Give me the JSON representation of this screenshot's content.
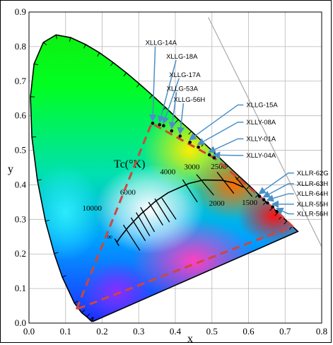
{
  "chart_data": {
    "type": "scatter",
    "title": "",
    "xlabel": "x",
    "ylabel": "y",
    "xlim": [
      0.0,
      0.8
    ],
    "ylim": [
      0.0,
      0.9
    ],
    "x_ticks": [
      "0.0",
      "0.1",
      "0.2",
      "0.3",
      "0.4",
      "0.5",
      "0.6",
      "0.7",
      "0.8"
    ],
    "y_ticks": [
      "0.0",
      "0.1",
      "0.2",
      "0.3",
      "0.4",
      "0.5",
      "0.6",
      "0.7",
      "0.8",
      "0.9"
    ],
    "grid": true,
    "spectral_locus": [
      [
        0.175,
        0.005
      ],
      [
        0.174,
        0.005
      ],
      [
        0.171,
        0.005
      ],
      [
        0.167,
        0.009
      ],
      [
        0.158,
        0.018
      ],
      [
        0.144,
        0.03
      ],
      [
        0.124,
        0.058
      ],
      [
        0.091,
        0.133
      ],
      [
        0.069,
        0.201
      ],
      [
        0.045,
        0.295
      ],
      [
        0.023,
        0.413
      ],
      [
        0.008,
        0.538
      ],
      [
        0.004,
        0.655
      ],
      [
        0.014,
        0.75
      ],
      [
        0.039,
        0.812
      ],
      [
        0.074,
        0.834
      ],
      [
        0.114,
        0.826
      ],
      [
        0.155,
        0.806
      ],
      [
        0.193,
        0.782
      ],
      [
        0.23,
        0.754
      ],
      [
        0.266,
        0.724
      ],
      [
        0.302,
        0.692
      ],
      [
        0.337,
        0.659
      ],
      [
        0.373,
        0.624
      ],
      [
        0.408,
        0.589
      ],
      [
        0.444,
        0.555
      ],
      [
        0.479,
        0.52
      ],
      [
        0.512,
        0.487
      ],
      [
        0.544,
        0.455
      ],
      [
        0.575,
        0.424
      ],
      [
        0.603,
        0.397
      ],
      [
        0.627,
        0.372
      ],
      [
        0.648,
        0.351
      ],
      [
        0.666,
        0.334
      ],
      [
        0.68,
        0.32
      ],
      [
        0.691,
        0.309
      ],
      [
        0.705,
        0.295
      ],
      [
        0.72,
        0.28
      ],
      [
        0.735,
        0.265
      ]
    ],
    "planckian_locus": [
      [
        0.24,
        0.234
      ],
      [
        0.252,
        0.252
      ],
      [
        0.27,
        0.276
      ],
      [
        0.285,
        0.293
      ],
      [
        0.306,
        0.316
      ],
      [
        0.323,
        0.331
      ],
      [
        0.345,
        0.352
      ],
      [
        0.38,
        0.377
      ],
      [
        0.437,
        0.404
      ],
      [
        0.476,
        0.414
      ],
      [
        0.527,
        0.413
      ],
      [
        0.559,
        0.406
      ],
      [
        0.586,
        0.393
      ]
    ],
    "planckian_end_label": "∞",
    "isotherms": [
      {
        "label": "10000",
        "x": [
          0.258,
          0.303
        ],
        "y": [
          0.284,
          0.21
        ]
      },
      {
        "label": "6000",
        "x": [
          0.305,
          0.343
        ],
        "y": [
          0.335,
          0.264
        ]
      },
      {
        "label": "4000",
        "x": [
          0.363,
          0.402
        ],
        "y": [
          0.362,
          0.3
        ]
      },
      {
        "label": "3000",
        "x": [
          0.42,
          0.46
        ],
        "y": [
          0.415,
          0.35
        ]
      },
      {
        "label": "2500",
        "x": [
          0.458,
          0.505
        ],
        "y": [
          0.43,
          0.37
        ]
      },
      {
        "label": "2000",
        "x": [
          0.514,
          0.56
        ],
        "y": [
          0.437,
          0.375
        ]
      },
      {
        "label": "1500",
        "x": [
          0.56,
          0.61
        ],
        "y": [
          0.428,
          0.366
        ]
      }
    ],
    "extra_isotherms": [
      {
        "x": [
          0.279,
          0.318
        ],
        "y": [
          0.305,
          0.238
        ]
      },
      {
        "x": [
          0.293,
          0.33
        ],
        "y": [
          0.32,
          0.252
        ]
      },
      {
        "x": [
          0.327,
          0.366
        ],
        "y": [
          0.35,
          0.283
        ]
      },
      {
        "x": [
          0.344,
          0.384
        ],
        "y": [
          0.36,
          0.292
        ]
      }
    ],
    "isotherm_labels": [
      {
        "text": "10000",
        "x": 0.146,
        "y": 0.325
      },
      {
        "text": "6000",
        "x": 0.249,
        "y": 0.371
      },
      {
        "text": "4000",
        "x": 0.358,
        "y": 0.431
      },
      {
        "text": "3000",
        "x": 0.424,
        "y": 0.445
      },
      {
        "text": "2500",
        "x": 0.497,
        "y": 0.446
      },
      {
        "text": "2000",
        "x": 0.492,
        "y": 0.34
      },
      {
        "text": "1500",
        "x": 0.582,
        "y": 0.342
      }
    ],
    "tc_label": {
      "text": "Tc(°K)",
      "x": 0.232,
      "y": 0.45
    },
    "led_points": [
      {
        "name": "XLLG-14A",
        "x": 0.338,
        "y": 0.578
      },
      {
        "name": "XLLG-18A",
        "x": 0.357,
        "y": 0.574
      },
      {
        "name": "XLLG-17A",
        "x": 0.368,
        "y": 0.571
      },
      {
        "name": "XLLG-53A",
        "x": 0.39,
        "y": 0.556
      },
      {
        "name": "XLLG-56H",
        "x": 0.413,
        "y": 0.541
      },
      {
        "name": "XLLG-15A",
        "x": 0.44,
        "y": 0.523
      },
      {
        "name": "XLLY-08A",
        "x": 0.463,
        "y": 0.509
      },
      {
        "name": "XLLY-01A",
        "x": 0.493,
        "y": 0.487
      },
      {
        "name": "XLLY-04A",
        "x": 0.506,
        "y": 0.478
      },
      {
        "name": "XLLR-62G",
        "x": 0.63,
        "y": 0.367
      },
      {
        "name": "XLLR-63H",
        "x": 0.642,
        "y": 0.357
      },
      {
        "name": "XLLR-64H",
        "x": 0.652,
        "y": 0.348
      },
      {
        "name": "XLLR-55H",
        "x": 0.666,
        "y": 0.336
      },
      {
        "name": "XLLR-56H",
        "x": 0.678,
        "y": 0.323
      }
    ],
    "led_labels": [
      {
        "name": "XLLG-14A",
        "x": 0.318,
        "y": 0.805
      },
      {
        "name": "XLLG-18A",
        "x": 0.375,
        "y": 0.765
      },
      {
        "name": "XLLG-17A",
        "x": 0.383,
        "y": 0.712
      },
      {
        "name": "XLLG-53A",
        "x": 0.376,
        "y": 0.672
      },
      {
        "name": "XLLG-56H",
        "x": 0.395,
        "y": 0.64
      },
      {
        "name": "XLLG-15A",
        "x": 0.594,
        "y": 0.625
      },
      {
        "name": "XLLY-08A",
        "x": 0.594,
        "y": 0.575
      },
      {
        "name": "XLLY-01A",
        "x": 0.594,
        "y": 0.527
      },
      {
        "name": "XLLY-04A",
        "x": 0.594,
        "y": 0.479
      },
      {
        "name": "XLLR-62G",
        "x": 0.732,
        "y": 0.428
      },
      {
        "name": "XLLR-63H",
        "x": 0.732,
        "y": 0.397
      },
      {
        "name": "XLLR-64H",
        "x": 0.732,
        "y": 0.368
      },
      {
        "name": "XLLR-55H",
        "x": 0.732,
        "y": 0.338
      },
      {
        "name": "XLLR-56H",
        "x": 0.732,
        "y": 0.31
      }
    ],
    "gamut_boundary": [
      [
        0.13,
        0.04
      ],
      [
        0.335,
        0.578
      ],
      [
        0.506,
        0.478
      ],
      [
        0.63,
        0.367
      ],
      [
        0.678,
        0.323
      ],
      [
        0.72,
        0.28
      ],
      [
        0.13,
        0.04
      ]
    ],
    "reference_line": [
      [
        0.49,
        0.885
      ],
      [
        0.82,
        0.178
      ]
    ],
    "colors": {
      "marker": "#000000",
      "arrow": "#4a90c8",
      "gamut": "#d0463c",
      "locus": "#000000",
      "grid": "#b8b8b8",
      "reference": "#aaaaaa"
    }
  }
}
